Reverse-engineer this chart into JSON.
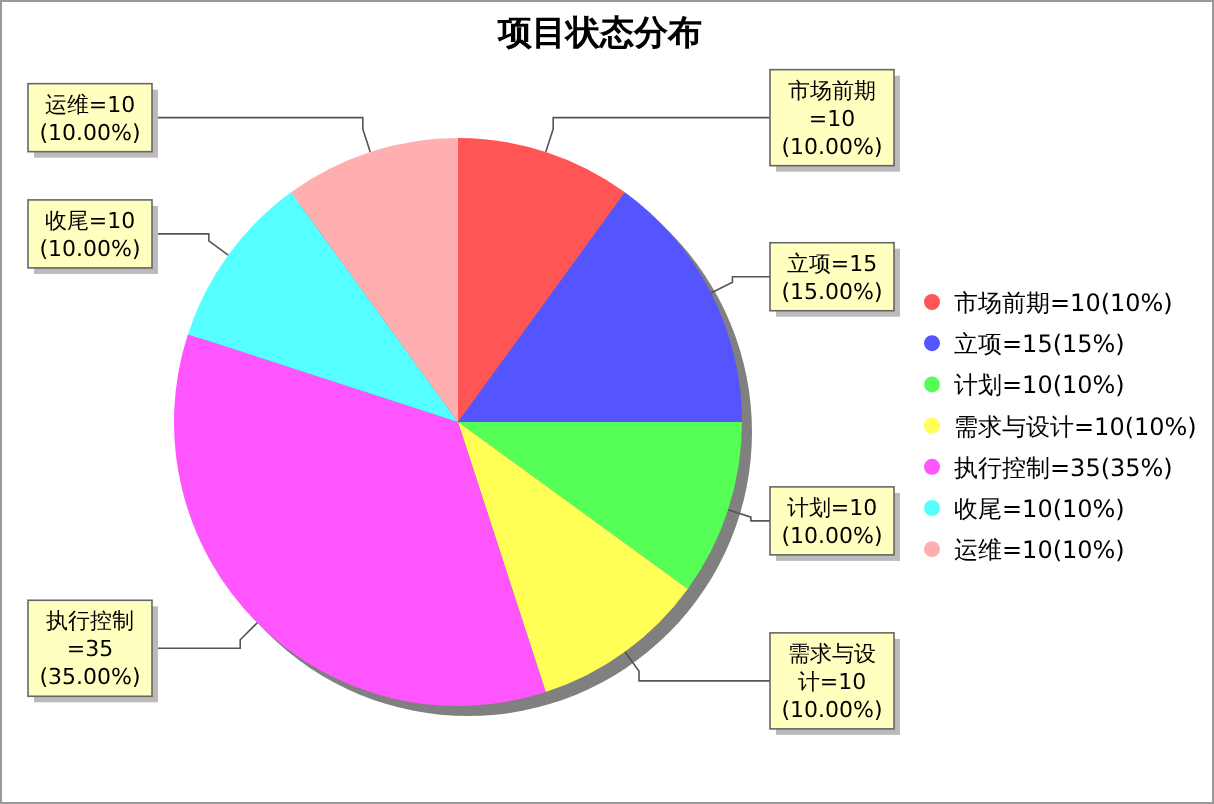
{
  "chart_data": {
    "type": "pie",
    "title": "项目状态分布",
    "categories": [
      "市场前期=10(10%)",
      "立项=15(15%)",
      "计划=10(10%)",
      "需求与设计=10(10%)",
      "执行控制=35(35%)",
      "收尾=10(10%)",
      "运维=10(10%)"
    ],
    "values": [
      10,
      15,
      10,
      10,
      35,
      10,
      10
    ],
    "colors": [
      "#ff5555",
      "#5555ff",
      "#55ff55",
      "#ffff55",
      "#ff55ff",
      "#55ffff",
      "#ffafaf"
    ],
    "value_labels": [
      "市场前期=10(10.00%)",
      "立项=15(15.00%)",
      "计划=10(10.00%)",
      "需求与设计=10(10.00%)",
      "执行控制=35(35.00%)",
      "收尾=10(10.00%)",
      "运维=10(10.00%)"
    ],
    "legend": "right"
  }
}
